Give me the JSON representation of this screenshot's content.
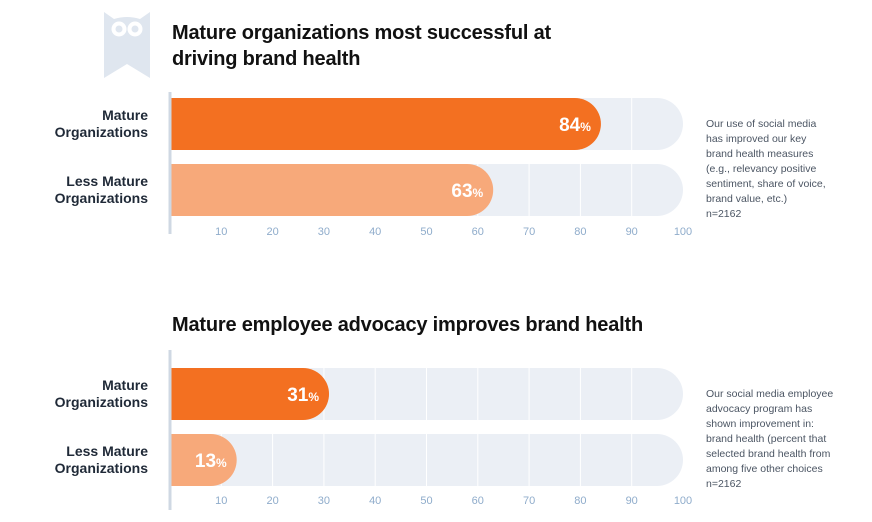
{
  "logo_icon": "owl-logo-icon",
  "colors": {
    "mature": "#f37021",
    "less_mature": "#f7a97a",
    "track": "#ebeff5",
    "tick": "#8faccb",
    "axis": "#cfd8e3"
  },
  "chart_data": [
    {
      "type": "bar",
      "orientation": "horizontal",
      "title": "Mature organizations most successful at driving brand health",
      "categories": [
        "Mature Organizations",
        "Less Mature Organizations"
      ],
      "category_lines": [
        [
          "Mature",
          "Organizations"
        ],
        [
          "Less Mature",
          "Organizations"
        ]
      ],
      "values": [
        84,
        63
      ],
      "value_labels": [
        "84",
        "63"
      ],
      "unit": "%",
      "xlim": [
        0,
        100
      ],
      "ticks": [
        10,
        20,
        30,
        40,
        50,
        60,
        70,
        80,
        90,
        100
      ],
      "note_lines": [
        "Our use of social media",
        "has improved our key",
        "brand health measures",
        "(e.g., relevancy positive",
        "sentiment, share of voice,",
        "brand value, etc.)",
        "n=2162"
      ]
    },
    {
      "type": "bar",
      "orientation": "horizontal",
      "title": "Mature employee advocacy improves brand health",
      "categories": [
        "Mature Organizations",
        "Less Mature Organizations"
      ],
      "category_lines": [
        [
          "Mature",
          "Organizations"
        ],
        [
          "Less Mature",
          "Organizations"
        ]
      ],
      "values": [
        31,
        13
      ],
      "value_labels": [
        "31",
        "13"
      ],
      "unit": "%",
      "xlim": [
        0,
        100
      ],
      "ticks": [
        10,
        20,
        30,
        40,
        50,
        60,
        70,
        80,
        90,
        100
      ],
      "note_lines": [
        "Our social media employee",
        "advocacy program has",
        "shown improvement in:",
        "brand health (percent that",
        "selected brand health from",
        "among five other choices",
        "n=2162"
      ]
    }
  ]
}
